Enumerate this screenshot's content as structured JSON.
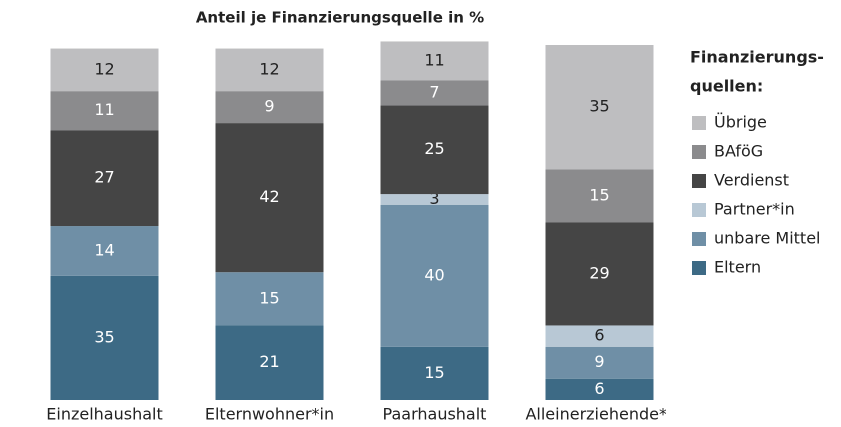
{
  "chart_data": {
    "type": "stacked_bar",
    "title": "Anteil je Finanzierungsquelle in %",
    "legend_title": [
      "Finanzierungs-",
      "quellen:"
    ],
    "legend_position": "right",
    "categories": [
      "Einzelhaushalt",
      "Elternwohner*in",
      "Paarhaushalt",
      "Alleinerziehende*r"
    ],
    "ylim": [
      0,
      100
    ],
    "series": [
      {
        "name": "Eltern",
        "color": "#3d6a85",
        "label_color": "#ffffff",
        "values": [
          35,
          21,
          15,
          6
        ]
      },
      {
        "name": "unbare Mittel",
        "color": "#6f8fa6",
        "label_color": "#ffffff",
        "values": [
          14,
          15,
          40,
          9
        ]
      },
      {
        "name": "Partner*in",
        "color": "#b8c8d5",
        "label_color": "#222222",
        "values": [
          0,
          0,
          3,
          6
        ]
      },
      {
        "name": "Verdienst",
        "color": "#454545",
        "label_color": "#ffffff",
        "values": [
          27,
          42,
          25,
          29
        ]
      },
      {
        "name": "BAföG",
        "color": "#8b8b8d",
        "label_color": "#ffffff",
        "values": [
          11,
          9,
          7,
          15
        ]
      },
      {
        "name": "Übrige",
        "color": "#bebec0",
        "label_color": "#222222",
        "values": [
          12,
          12,
          11,
          35
        ]
      }
    ]
  }
}
